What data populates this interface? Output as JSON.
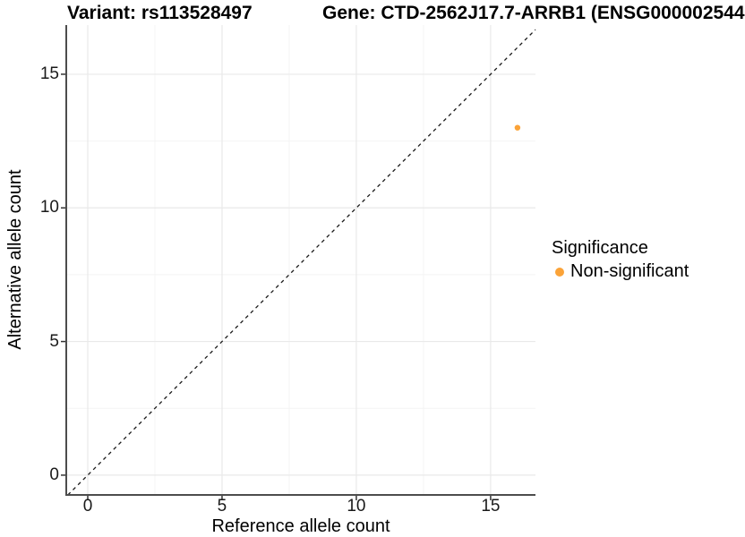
{
  "figure": {
    "titles": {
      "variant": "Variant: rs113528497",
      "gene": "Gene: CTD-2562J17.7-ARRB1 (ENSG000002544"
    },
    "colors": {
      "point": "#FBA338",
      "grid_major": "#E9E9E9",
      "grid_minor": "#F4F4F4",
      "axis_line": "#4D4D4D",
      "tick_mark": "#333333",
      "reference_line": "#1A1A1A"
    }
  },
  "chart_data": {
    "type": "scatter",
    "title": "Variant: rs113528497   Gene: CTD-2562J17.7-ARRB1 (ENSG000002544",
    "xlabel": "Reference allele count",
    "ylabel": "Alternative allele count",
    "xlim": [
      -0.8,
      16.67
    ],
    "ylim": [
      -0.74,
      16.84
    ],
    "x_major_ticks": [
      0,
      5,
      10,
      15
    ],
    "y_major_ticks": [
      0,
      5,
      10,
      15
    ],
    "x_minor_ticks": [
      2.5,
      7.5,
      12.5
    ],
    "y_minor_ticks": [
      2.5,
      7.5,
      12.5
    ],
    "grid": true,
    "reference_line": {
      "type": "identity",
      "style": "dashed"
    },
    "series": [
      {
        "name": "Non-significant",
        "color": "#FBA338",
        "points": [
          {
            "x": 16,
            "y": 13
          }
        ]
      }
    ],
    "legend": {
      "title": "Significance",
      "position": "right",
      "items": [
        {
          "label": "Non-significant",
          "color": "#FBA338"
        }
      ]
    }
  }
}
